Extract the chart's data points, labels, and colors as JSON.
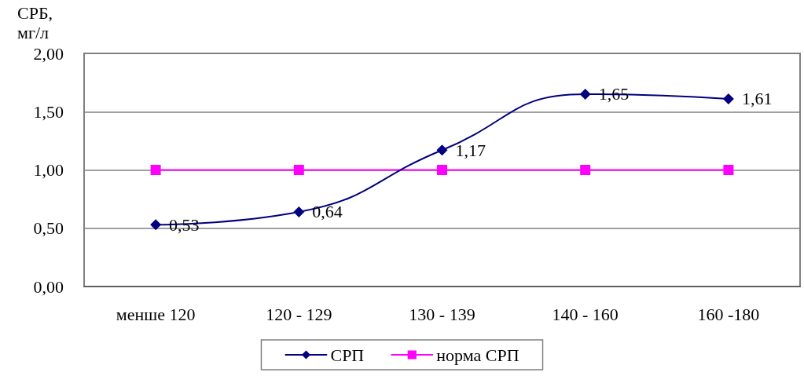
{
  "chart_data": {
    "type": "line",
    "ylabel": "СРБ, мг/л",
    "categories": [
      "менше 120",
      "120 - 129",
      "130 - 139",
      "140 - 160",
      "160 -180"
    ],
    "series": [
      {
        "name": "СРП",
        "color": "#000080",
        "marker": "diamond",
        "values": [
          0.53,
          0.64,
          1.17,
          1.65,
          1.61
        ],
        "value_labels": [
          "0,53",
          "0,64",
          "1,17",
          "1,65",
          "1,61"
        ]
      },
      {
        "name": "норма СРП",
        "color": "#ff00ff",
        "marker": "square",
        "values": [
          1,
          1,
          1,
          1,
          1
        ]
      }
    ],
    "ylim": [
      0,
      2
    ],
    "yticks": [
      {
        "value": 0,
        "label": "0,00"
      },
      {
        "value": 0.5,
        "label": "0,50"
      },
      {
        "value": 1,
        "label": "1,00"
      },
      {
        "value": 1.5,
        "label": "1,50"
      },
      {
        "value": 2,
        "label": "2,00"
      }
    ],
    "grid": "y",
    "legend": "bottom"
  }
}
